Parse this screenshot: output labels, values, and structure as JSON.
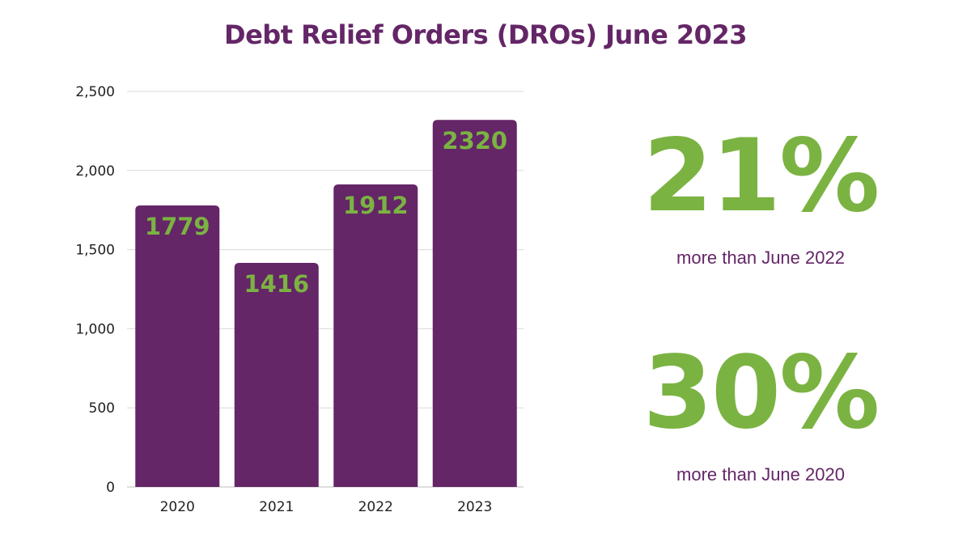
{
  "chart_data": {
    "type": "bar",
    "title": "Debt Relief Orders (DROs) June 2023",
    "categories": [
      "2020",
      "2021",
      "2022",
      "2023"
    ],
    "values": [
      1779,
      1416,
      1912,
      2320
    ],
    "data_labels": [
      "1779",
      "1416",
      "1912",
      "2320"
    ],
    "ylim": [
      0,
      2500
    ],
    "yticks": [
      0,
      500,
      1000,
      1500,
      2000,
      2500
    ],
    "ytick_labels": [
      "0",
      "500",
      "1,000",
      "1,500",
      "2,000",
      "2,500"
    ],
    "xlabel": "",
    "ylabel": "",
    "grid": true,
    "colors": {
      "bar": "#642667",
      "data_label": "#7bb342",
      "grid": "#d9d9d9",
      "axis_text": "#222222"
    }
  },
  "stats": [
    {
      "value": "21%",
      "caption": "more than June 2022"
    },
    {
      "value": "30%",
      "caption": "more than June 2020"
    }
  ],
  "colors": {
    "title": "#642667",
    "accent_green": "#7bb342"
  }
}
